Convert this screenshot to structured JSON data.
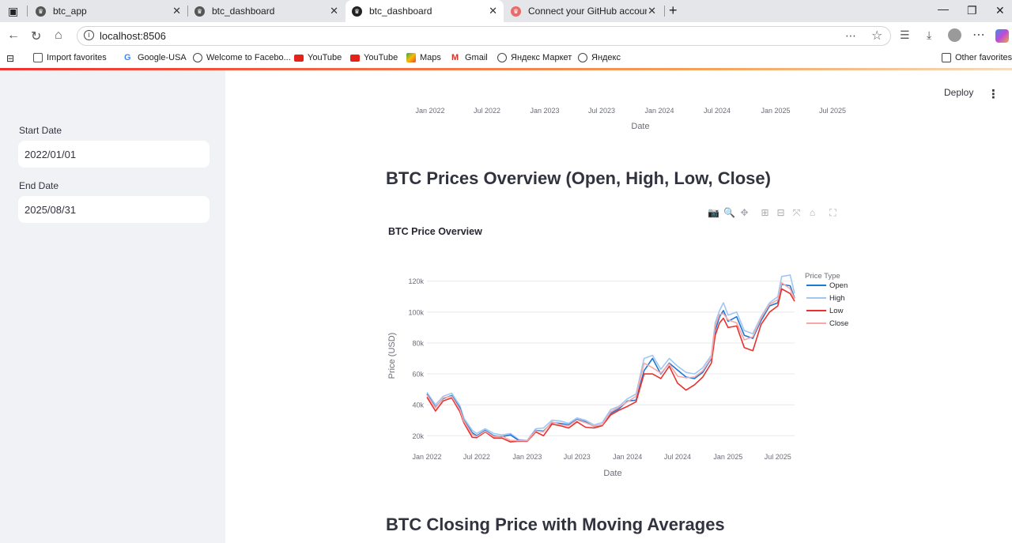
{
  "browser": {
    "tabs": [
      {
        "title": "btc_app",
        "active": false
      },
      {
        "title": "btc_dashboard",
        "active": false
      },
      {
        "title": "btc_dashboard",
        "active": true
      },
      {
        "title": "Connect your GitHub account - St",
        "active": false
      }
    ],
    "url": "localhost:8506",
    "bookmarks": [
      "Import favorites",
      "Google-USA",
      "Welcome to Facebo...",
      "YouTube",
      "YouTube",
      "Maps",
      "Gmail",
      "Яндекс Маркет",
      "Яндекс"
    ],
    "other_favorites": "Other favorites"
  },
  "sidebar": {
    "start_label": "Start Date",
    "start_value": "2022/01/01",
    "end_label": "End Date",
    "end_value": "2025/08/31"
  },
  "header": {
    "deploy": "Deploy"
  },
  "top_chart_fragment": {
    "ticks": [
      "Jan 2022",
      "Jul 2022",
      "Jan 2023",
      "Jul 2023",
      "Jan 2024",
      "Jul 2024",
      "Jan 2025",
      "Jul 2025"
    ],
    "xlabel": "Date"
  },
  "section1": {
    "heading": "BTC Prices Overview (Open, High, Low, Close)"
  },
  "section2": {
    "heading": "BTC Closing Price with Moving Averages"
  },
  "chart_data": {
    "type": "line",
    "title": "BTC Price Overview",
    "xlabel": "Date",
    "ylabel": "Price (USD)",
    "legend_title": "Price Type",
    "legend_position": "right",
    "x_ticks": [
      "Jan 2022",
      "Jul 2022",
      "Jan 2023",
      "Jul 2023",
      "Jan 2024",
      "Jul 2024",
      "Jan 2025",
      "Jul 2025"
    ],
    "y_ticks": [
      "20k",
      "40k",
      "60k",
      "80k",
      "100k",
      "120k"
    ],
    "ylim": [
      13000,
      127000
    ],
    "xlim": [
      "2022-01-01",
      "2025-08-31"
    ],
    "x": [
      "2022-01-01",
      "2022-02-01",
      "2022-03-01",
      "2022-04-01",
      "2022-05-01",
      "2022-05-15",
      "2022-06-15",
      "2022-07-01",
      "2022-08-01",
      "2022-09-01",
      "2022-10-01",
      "2022-11-01",
      "2022-12-01",
      "2023-01-01",
      "2023-02-01",
      "2023-03-01",
      "2023-04-01",
      "2023-05-01",
      "2023-06-01",
      "2023-07-01",
      "2023-08-01",
      "2023-09-01",
      "2023-10-01",
      "2023-11-01",
      "2023-12-01",
      "2024-01-01",
      "2024-02-01",
      "2024-03-01",
      "2024-04-01",
      "2024-05-01",
      "2024-06-01",
      "2024-07-01",
      "2024-08-01",
      "2024-09-01",
      "2024-10-01",
      "2024-11-01",
      "2024-11-15",
      "2024-12-01",
      "2024-12-15",
      "2025-01-01",
      "2025-02-01",
      "2025-03-01",
      "2025-04-01",
      "2025-05-01",
      "2025-06-01",
      "2025-07-01",
      "2025-07-15",
      "2025-08-15",
      "2025-08-31"
    ],
    "series": [
      {
        "name": "Open",
        "color": "#1f77d4",
        "values": [
          47000,
          38500,
          44000,
          46000,
          38000,
          30000,
          22000,
          20000,
          23500,
          20000,
          19500,
          20500,
          17000,
          16600,
          23500,
          23000,
          28500,
          28000,
          27000,
          30500,
          29000,
          26000,
          27000,
          34500,
          37500,
          42500,
          43000,
          62000,
          70000,
          60000,
          67000,
          62500,
          58000,
          57000,
          61000,
          70000,
          88000,
          97000,
          101000,
          94000,
          97000,
          85000,
          83000,
          94500,
          104000,
          106000,
          118000,
          117000,
          109000
        ]
      },
      {
        "name": "High",
        "color": "#9fc7f3",
        "values": [
          48000,
          40000,
          45500,
          47500,
          39500,
          31500,
          23500,
          21500,
          24500,
          21500,
          20500,
          21500,
          17500,
          17000,
          24500,
          25000,
          30000,
          29500,
          28000,
          31500,
          30000,
          27000,
          28500,
          37000,
          39000,
          44000,
          47000,
          70000,
          72000,
          63000,
          70000,
          65000,
          61000,
          60000,
          64000,
          72000,
          93000,
          101000,
          106000,
          98000,
          100000,
          88000,
          86000,
          97000,
          106000,
          110000,
          123000,
          124000,
          112000
        ]
      },
      {
        "name": "Low",
        "color": "#e8312f",
        "values": [
          45000,
          36000,
          42500,
          44500,
          35500,
          28500,
          19000,
          18800,
          22500,
          18500,
          18500,
          16000,
          16500,
          16400,
          22500,
          20000,
          27500,
          26500,
          25000,
          29000,
          25500,
          25000,
          26500,
          33500,
          36500,
          39000,
          42000,
          60000,
          60000,
          57000,
          65000,
          54000,
          49500,
          53000,
          58000,
          67000,
          85000,
          93000,
          96000,
          90000,
          91000,
          77000,
          75000,
          92000,
          100000,
          104000,
          115000,
          112000,
          107000
        ]
      },
      {
        "name": "Close",
        "color": "#f7a8a6",
        "values": [
          46500,
          38000,
          44500,
          45500,
          37000,
          29500,
          21000,
          19500,
          23000,
          19500,
          19800,
          17000,
          16800,
          16800,
          23200,
          22500,
          29000,
          27200,
          26500,
          30200,
          28500,
          26200,
          27200,
          35500,
          38500,
          42000,
          45500,
          67000,
          64000,
          60500,
          66500,
          58500,
          57500,
          58000,
          62000,
          70500,
          91000,
          98500,
          99000,
          95000,
          93000,
          82000,
          84000,
          96000,
          105000,
          108000,
          119000,
          115000,
          108500
        ]
      }
    ]
  }
}
